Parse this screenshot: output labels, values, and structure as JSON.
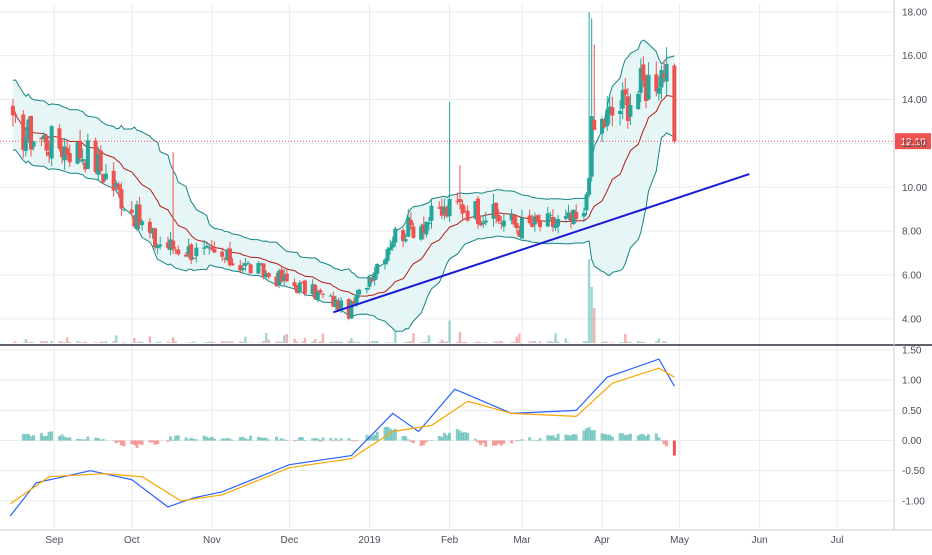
{
  "chart_data": [
    {
      "type": "candlestick",
      "panel": "price",
      "indicators": [
        "bollinger-bands",
        "trendline",
        "last-price-line"
      ],
      "x_ticks": [
        "Sep",
        "Oct",
        "Nov",
        "Dec",
        "2019",
        "Feb",
        "Mar",
        "Apr",
        "May",
        "Jun",
        "Jul"
      ],
      "y_ticks": [
        "4.00",
        "6.00",
        "8.00",
        "10.00",
        "12.00",
        "14.00",
        "16.00",
        "18.00"
      ],
      "ylim": [
        2.9,
        18.4
      ],
      "last_price": 12.1,
      "last_price_label": "12.10",
      "trendline": {
        "start": [
          "2018-12-18",
          4.3
        ],
        "end": [
          "2019-05-28",
          10.6
        ]
      },
      "key_closes": [
        {
          "date": "2018-08-16",
          "value": 12.6
        },
        {
          "date": "2018-09-15",
          "value": 11.5
        },
        {
          "date": "2018-10-10",
          "value": 7.5
        },
        {
          "date": "2018-11-10",
          "value": 6.6
        },
        {
          "date": "2018-12-15",
          "value": 5.0
        },
        {
          "date": "2018-12-24",
          "value": 4.3
        },
        {
          "date": "2019-01-10",
          "value": 7.8
        },
        {
          "date": "2019-02-05",
          "value": 9.2
        },
        {
          "date": "2019-03-01",
          "value": 8.2
        },
        {
          "date": "2019-03-25",
          "value": 8.5
        },
        {
          "date": "2019-03-28",
          "value": 12.5
        },
        {
          "date": "2019-04-25",
          "value": 15.5
        },
        {
          "date": "2019-04-29",
          "value": 12.1
        }
      ]
    },
    {
      "type": "line",
      "panel": "macd",
      "indicators": [
        "macd-line",
        "signal-line",
        "histogram"
      ],
      "y_ticks": [
        "1.50",
        "1.00",
        "0.50",
        "0.00",
        "-0.50",
        "-1.00"
      ],
      "ylim": [
        -1.45,
        1.55
      ],
      "series": [
        {
          "points": [
            [
              "2018-08-15",
              -1.25
            ],
            [
              "2018-08-25",
              -0.7
            ],
            [
              "2018-09-15",
              -0.5
            ],
            [
              "2018-10-01",
              -0.65
            ],
            [
              "2018-10-15",
              -1.1
            ],
            [
              "2018-10-25",
              -0.95
            ],
            [
              "2018-11-05",
              -0.85
            ],
            [
              "2018-12-01",
              -0.4
            ],
            [
              "2018-12-25",
              -0.25
            ],
            [
              "2019-01-10",
              0.45
            ],
            [
              "2019-01-20",
              0.15
            ],
            [
              "2019-02-03",
              0.85
            ],
            [
              "2019-02-25",
              0.45
            ],
            [
              "2019-03-22",
              0.5
            ],
            [
              "2019-04-03",
              1.05
            ],
            [
              "2019-04-23",
              1.35
            ],
            [
              "2019-04-29",
              0.9
            ]
          ]
        },
        {
          "points": [
            [
              "2018-08-15",
              -1.05
            ],
            [
              "2018-08-30",
              -0.6
            ],
            [
              "2018-09-20",
              -0.55
            ],
            [
              "2018-10-05",
              -0.6
            ],
            [
              "2018-10-20",
              -1.0
            ],
            [
              "2018-11-05",
              -0.9
            ],
            [
              "2018-12-01",
              -0.45
            ],
            [
              "2018-12-25",
              -0.3
            ],
            [
              "2019-01-10",
              0.15
            ],
            [
              "2019-01-25",
              0.25
            ],
            [
              "2019-02-08",
              0.65
            ],
            [
              "2019-02-25",
              0.45
            ],
            [
              "2019-03-22",
              0.4
            ],
            [
              "2019-04-05",
              0.95
            ],
            [
              "2019-04-23",
              1.2
            ],
            [
              "2019-04-29",
              1.05
            ]
          ]
        }
      ],
      "histogram": [
        [
          "2018-08-20",
          0.1
        ],
        [
          "2018-09-01",
          0.12
        ],
        [
          "2018-09-25",
          -0.04
        ],
        [
          "2018-10-05",
          -0.1
        ],
        [
          "2018-10-18",
          0.05
        ],
        [
          "2018-11-10",
          0.05
        ],
        [
          "2018-12-05",
          0.02
        ],
        [
          "2018-12-28",
          0.0
        ],
        [
          "2019-01-08",
          0.25
        ],
        [
          "2019-01-20",
          -0.08
        ],
        [
          "2019-02-04",
          0.2
        ],
        [
          "2019-02-15",
          -0.1
        ],
        [
          "2019-03-01",
          0.02
        ],
        [
          "2019-03-20",
          0.1
        ],
        [
          "2019-03-27",
          0.22
        ],
        [
          "2019-04-05",
          0.08
        ],
        [
          "2019-04-22",
          0.12
        ],
        [
          "2019-04-29",
          -0.25
        ]
      ]
    }
  ],
  "colors": {
    "up": "#26a69a",
    "down": "#ef5350",
    "band_line": "#138484",
    "band_fill": "#e6f5f5",
    "middle": "#b71c1c",
    "trendline": "#1a1adc",
    "macd_line": "#2962ff",
    "signal_line": "#f7a600",
    "last_price_bg": "#ef5350",
    "grid": "#e8ebef",
    "axis_text": "#4a4f5a"
  }
}
